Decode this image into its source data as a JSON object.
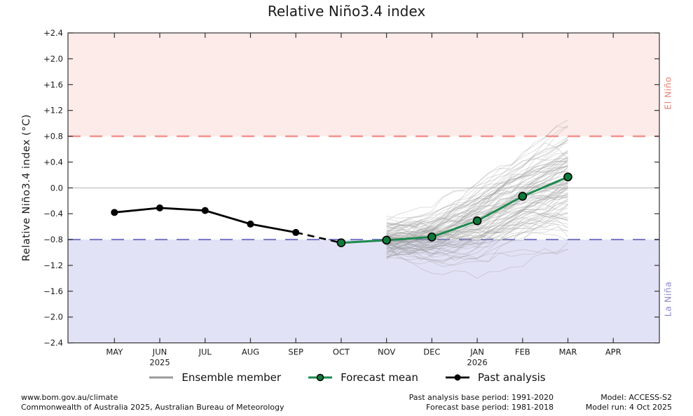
{
  "title": "Relative Niño3.4 index",
  "y_axis_label": "Relative Niño3.4 index (°C)",
  "region_labels": {
    "el_nino": "El Niño",
    "la_nina": "La Niña"
  },
  "legend": [
    {
      "label": "Ensemble member"
    },
    {
      "label": "Forecast mean"
    },
    {
      "label": "Past analysis"
    }
  ],
  "footer": {
    "left": [
      "www.bom.gov.au/climate",
      "Commonwealth of Australia 2025, Australian Bureau of Meteorology"
    ],
    "center": [
      "Past analysis base period: 1991-2020",
      "Forecast base period: 1981-2018"
    ],
    "right": [
      "Model: ACCESS-S2",
      "Model run: 4 Oct 2025"
    ]
  },
  "chart_data": {
    "type": "line",
    "title": "Relative Niño3.4 index",
    "ylabel": "Relative Niño3.4 index (°C)",
    "x_categories": [
      "MAY",
      "JUN",
      "JUL",
      "AUG",
      "SEP",
      "OCT",
      "NOV",
      "DEC",
      "JAN",
      "FEB",
      "MAR",
      "APR"
    ],
    "x_year_labels": [
      {
        "index": 1,
        "text": "2025"
      },
      {
        "index": 8,
        "text": "2026"
      }
    ],
    "ylim": [
      -2.4,
      2.4
    ],
    "ytick_step": 0.4,
    "grid": false,
    "zero_line": 0.0,
    "thresholds": {
      "el_nino": 0.8,
      "la_nina": -0.8
    },
    "series": [
      {
        "name": "Past analysis",
        "months": [
          "MAY",
          "JUN",
          "JUL",
          "AUG",
          "SEP"
        ],
        "values": [
          -0.38,
          -0.31,
          -0.35,
          -0.56,
          -0.69
        ]
      },
      {
        "name": "Past analysis to forecast connector (dashed)",
        "months": [
          "SEP",
          "OCT"
        ],
        "values": [
          -0.69,
          -0.85
        ]
      },
      {
        "name": "Forecast mean",
        "months": [
          "OCT",
          "NOV",
          "DEC",
          "JAN",
          "FEB",
          "MAR"
        ],
        "values": [
          -0.85,
          -0.81,
          -0.76,
          -0.51,
          -0.13,
          0.17
        ]
      },
      {
        "name": "Ensemble member",
        "count": 99,
        "months": [
          "NOV",
          "DEC",
          "JAN",
          "FEB",
          "MAR"
        ],
        "mean_track": [
          -0.81,
          -0.76,
          -0.51,
          -0.13,
          0.17
        ],
        "envelope_min": [
          -1.15,
          -1.35,
          -1.4,
          -1.25,
          -0.95
        ],
        "envelope_max": [
          -0.3,
          -0.3,
          0.45,
          0.75,
          1.05
        ],
        "seed": 7,
        "note": "individual unlabeled members approximated from envelope"
      }
    ],
    "colors": {
      "past": "#000000",
      "forecast_line": "#1e8a4e",
      "forecast_marker_fill": "#0e7a3b",
      "ensemble": "#999999",
      "el_nino_region": "#fcebe9",
      "el_nino_line": "#f4827d",
      "el_nino_text": "#ea8173",
      "la_nina_region": "#e2e2f6",
      "la_nina_line": "#7d7dc8",
      "la_nina_text": "#8a8ace",
      "zero_line": "#bbbbbb",
      "spine": "#333333",
      "tick_text": "#1a1a1a"
    }
  }
}
